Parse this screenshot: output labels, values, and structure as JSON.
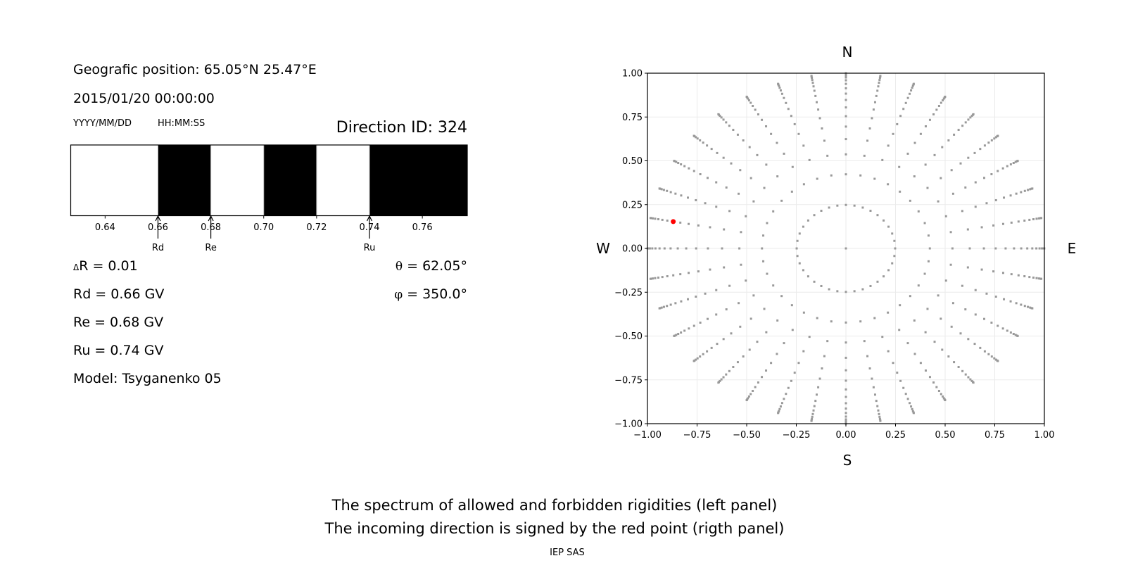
{
  "info": {
    "position": "Geografic position: 65.05°N 25.47°E",
    "datetime": "2015/01/20 00:00:00",
    "date_format": "YYYY/MM/DD",
    "time_format": "HH:MM:SS",
    "direction_id": "Direction ID: 324",
    "delta_r_symbol": "Δ",
    "delta_r": "R = 0.01",
    "rd": "Rd = 0.66 GV",
    "re": "Re = 0.68 GV",
    "ru": "Ru = 0.74 GV",
    "model": "Model: Tsyganenko 05",
    "theta_symbol": "θ",
    "theta": " = 62.05°",
    "phi_symbol": "φ",
    "phi": " = 350.0°"
  },
  "compass": {
    "north": "N",
    "south": "S",
    "west": "W",
    "east": "E"
  },
  "footer": {
    "line1": "The spectrum of allowed and forbidden rigidities (left panel)",
    "line2": "The incoming direction is signed by the red point (rigth panel)",
    "credit": "IEP SAS"
  },
  "chart_data": [
    {
      "type": "bar",
      "description_type": "rigidity spectrum",
      "xlim": [
        0.627,
        0.777
      ],
      "xticks": [
        "0.64",
        "0.66",
        "0.68",
        "0.70",
        "0.72",
        "0.74",
        "0.76"
      ],
      "xtick_values": [
        0.64,
        0.66,
        0.68,
        0.7,
        0.72,
        0.74,
        0.76
      ],
      "segments": [
        {
          "from": 0.627,
          "to": 0.66,
          "state": "allowed"
        },
        {
          "from": 0.66,
          "to": 0.68,
          "state": "forbidden"
        },
        {
          "from": 0.68,
          "to": 0.7,
          "state": "allowed"
        },
        {
          "from": 0.7,
          "to": 0.72,
          "state": "forbidden"
        },
        {
          "from": 0.72,
          "to": 0.74,
          "state": "allowed"
        },
        {
          "from": 0.74,
          "to": 0.777,
          "state": "forbidden"
        }
      ],
      "colors": {
        "allowed": "#ffffff",
        "forbidden": "#000000"
      },
      "annotations": [
        {
          "label": "Rd",
          "x": 0.66
        },
        {
          "label": "Re",
          "x": 0.68
        },
        {
          "label": "Ru",
          "x": 0.74
        }
      ]
    },
    {
      "type": "scatter",
      "xlim": [
        -1,
        1
      ],
      "ylim": [
        -1,
        1
      ],
      "grid": true,
      "xticks": [
        "−1.00",
        "−0.75",
        "−0.50",
        "−0.25",
        "0.00",
        "0.25",
        "0.50",
        "0.75",
        "1.00"
      ],
      "yticks": [
        "−1.00",
        "−0.75",
        "−0.50",
        "−0.25",
        "0.00",
        "0.25",
        "0.50",
        "0.75",
        "1.00"
      ],
      "tick_values": [
        -1,
        -0.75,
        -0.5,
        -0.25,
        0,
        0.25,
        0.5,
        0.75,
        1
      ],
      "zenith_angles_deg": [
        14.36,
        25.02,
        32.47,
        38.62,
        44.05,
        48.99,
        53.58,
        57.91,
        62.05,
        66.03,
        69.89,
        73.67,
        77.36,
        81.01,
        84.62,
        88.21
      ],
      "azimuth_step_deg": 10,
      "center_point": [
        0,
        0
      ],
      "point_color": "#999999",
      "highlight": {
        "theta_deg": 62.05,
        "phi_deg": 350.0,
        "x": -0.87,
        "y": 0.153,
        "color": "#ff0000"
      }
    }
  ]
}
